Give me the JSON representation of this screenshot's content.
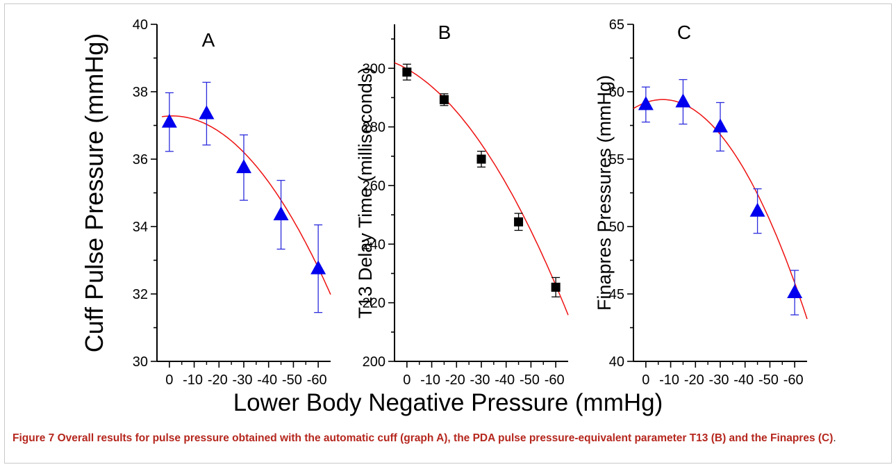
{
  "figure": {
    "xlabel": "Lower Body Negative Pressure (mmHg)",
    "caption": {
      "lead": "Figure 7 Overall results for pulse pressure obtained with the automatic cuff (graph A), the PDA pulse pressure-equivalent parameter T13 (B) and the Finapres (C)",
      "end": "."
    }
  },
  "chart_data": [
    {
      "panel": "A",
      "type": "scatter",
      "ylabel": "Cuff Pulse Pressure (mmHg)",
      "xlabel": "Lower Body Negative Pressure (mmHg)",
      "ylim": [
        30,
        40
      ],
      "y_ticks": [
        30,
        32,
        34,
        36,
        38,
        40
      ],
      "x_ticks": [
        0,
        -10,
        -20,
        -30,
        -40,
        -50,
        -60
      ],
      "xlim": [
        5,
        -65
      ],
      "marker": "triangle",
      "marker_color": "#0000ee",
      "errorbar_color": "#2b2bdd",
      "fit_color": "#ee1111",
      "x": [
        0,
        -15,
        -30,
        -45,
        -60
      ],
      "y": [
        37.1,
        37.35,
        35.75,
        34.35,
        32.75
      ],
      "error": [
        0.87,
        0.93,
        0.97,
        1.02,
        1.3
      ],
      "fit": {
        "type": "quadratic",
        "y0": 37.28,
        "b": -0.003,
        "c": -0.0013,
        "x_range": [
          3,
          -65
        ]
      }
    },
    {
      "panel": "B",
      "type": "scatter",
      "ylabel": "T13 Delay Time (milliseconds)",
      "xlabel": "Lower Body Negative Pressure (mmHg)",
      "ylim": [
        200,
        315
      ],
      "y_ticks": [
        200,
        220,
        240,
        260,
        280,
        300
      ],
      "x_ticks": [
        0,
        -10,
        -20,
        -30,
        -40,
        -50,
        -60
      ],
      "xlim": [
        5,
        -65
      ],
      "marker": "square",
      "marker_color": "#000000",
      "errorbar_color": "#000000",
      "fit_color": "#ee1111",
      "x": [
        0,
        -15,
        -30,
        -45,
        -60
      ],
      "y": [
        298.7,
        289.3,
        269.0,
        247.6,
        225.3
      ],
      "error": [
        2.7,
        2.0,
        2.7,
        2.9,
        3.3
      ],
      "fit": {
        "type": "quadratic",
        "y0": 299.8,
        "b": 0.48,
        "c": -0.0125,
        "x_range": [
          5,
          -65
        ]
      }
    },
    {
      "panel": "C",
      "type": "scatter",
      "ylabel": "Finapres Pressures (mmHg)",
      "xlabel": "Lower Body Negative Pressure (mmHg)",
      "ylim": [
        40,
        65
      ],
      "y_ticks": [
        40,
        45,
        50,
        55,
        60,
        65
      ],
      "x_ticks": [
        0,
        -10,
        -20,
        -30,
        -40,
        -50,
        -60
      ],
      "xlim": [
        5,
        -65
      ],
      "marker": "triangle",
      "marker_color": "#0000ee",
      "errorbar_color": "#2b2bdd",
      "fit_color": "#ee1111",
      "x": [
        0,
        -15,
        -30,
        -45,
        -60
      ],
      "y": [
        59.05,
        59.25,
        57.4,
        51.15,
        45.1
      ],
      "error": [
        1.3,
        1.65,
        1.8,
        1.65,
        1.65
      ],
      "fit": {
        "type": "quadratic",
        "y0": 59.2,
        "b": -0.065,
        "c": -0.0048,
        "x_range": [
          5,
          -65
        ]
      }
    }
  ]
}
